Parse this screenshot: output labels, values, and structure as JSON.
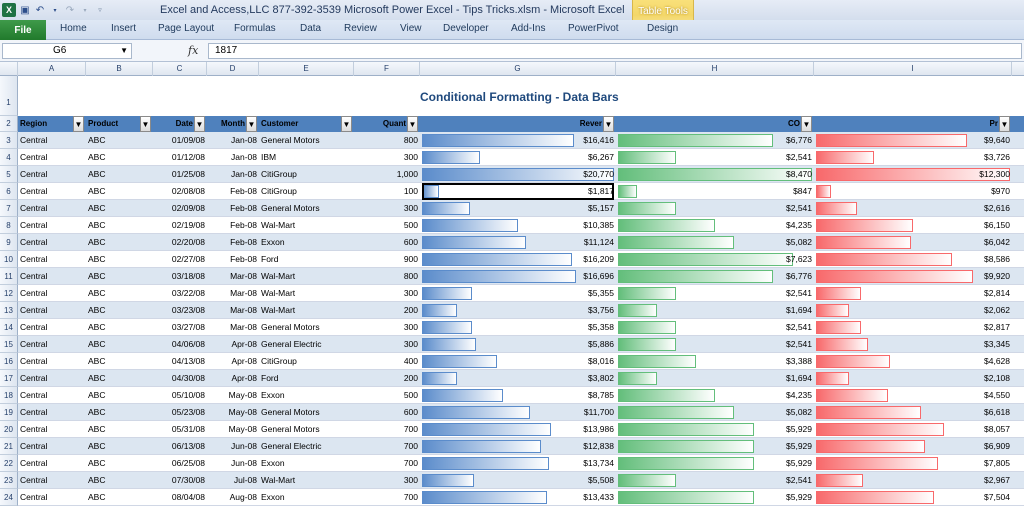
{
  "window_title": "Excel and Access,LLC 877-392-3539 Microsoft Power Excel - Tips  Tricks.xlsm  -  Microsoft Excel",
  "context_tab": "Table Tools",
  "ribbon_tabs": [
    "File",
    "Home",
    "Insert",
    "Page Layout",
    "Formulas",
    "Data",
    "Review",
    "View",
    "Developer",
    "Add-Ins",
    "PowerPivot",
    "Design"
  ],
  "name_box": "G6",
  "formula": "1817",
  "fx_label": "fx",
  "columns": [
    "A",
    "B",
    "C",
    "D",
    "E",
    "F",
    "G",
    "H",
    "I"
  ],
  "sheet_title": "Conditional Formatting - Data Bars",
  "headers": [
    "Region",
    "Product",
    "Date",
    "Month",
    "Customer",
    "Quantity",
    "Revenue",
    "COGS",
    "Profit"
  ],
  "header_shown": [
    "Region",
    "Product",
    "Date",
    "Month",
    "Customer",
    "Quant",
    "Rever",
    "CO",
    "Pr"
  ],
  "row_numbers": [
    1,
    2,
    3,
    4,
    5,
    6,
    7,
    8,
    9,
    10,
    11,
    12,
    13,
    14,
    15,
    16,
    17,
    18,
    19,
    20,
    21,
    22,
    23,
    24
  ],
  "colors": {
    "bar_blue": "#5b8ccb",
    "bar_green": "#63be7b",
    "bar_red": "#f8696b",
    "header_fill": "#4f81bd",
    "band_fill": "#dce6f1"
  },
  "rows": [
    [
      "Central",
      "ABC",
      "01/09/08",
      "Jan-08",
      "General Motors",
      "800",
      "$16,416",
      "$6,776",
      "$9,640"
    ],
    [
      "Central",
      "ABC",
      "01/12/08",
      "Jan-08",
      "IBM",
      "300",
      "$6,267",
      "$2,541",
      "$3,726"
    ],
    [
      "Central",
      "ABC",
      "01/25/08",
      "Jan-08",
      "CitiGroup",
      "1,000",
      "$20,770",
      "$8,470",
      "$12,300"
    ],
    [
      "Central",
      "ABC",
      "02/08/08",
      "Feb-08",
      "CitiGroup",
      "100",
      "$1,817",
      "$847",
      "$970"
    ],
    [
      "Central",
      "ABC",
      "02/09/08",
      "Feb-08",
      "General Motors",
      "300",
      "$5,157",
      "$2,541",
      "$2,616"
    ],
    [
      "Central",
      "ABC",
      "02/19/08",
      "Feb-08",
      "Wal-Mart",
      "500",
      "$10,385",
      "$4,235",
      "$6,150"
    ],
    [
      "Central",
      "ABC",
      "02/20/08",
      "Feb-08",
      "Exxon",
      "600",
      "$11,124",
      "$5,082",
      "$6,042"
    ],
    [
      "Central",
      "ABC",
      "02/27/08",
      "Feb-08",
      "Ford",
      "900",
      "$16,209",
      "$7,623",
      "$8,586"
    ],
    [
      "Central",
      "ABC",
      "03/18/08",
      "Mar-08",
      "Wal-Mart",
      "800",
      "$16,696",
      "$6,776",
      "$9,920"
    ],
    [
      "Central",
      "ABC",
      "03/22/08",
      "Mar-08",
      "Wal-Mart",
      "300",
      "$5,355",
      "$2,541",
      "$2,814"
    ],
    [
      "Central",
      "ABC",
      "03/23/08",
      "Mar-08",
      "Wal-Mart",
      "200",
      "$3,756",
      "$1,694",
      "$2,062"
    ],
    [
      "Central",
      "ABC",
      "03/27/08",
      "Mar-08",
      "General Motors",
      "300",
      "$5,358",
      "$2,541",
      "$2,817"
    ],
    [
      "Central",
      "ABC",
      "04/06/08",
      "Apr-08",
      "General Electric",
      "300",
      "$5,886",
      "$2,541",
      "$3,345"
    ],
    [
      "Central",
      "ABC",
      "04/13/08",
      "Apr-08",
      "CitiGroup",
      "400",
      "$8,016",
      "$3,388",
      "$4,628"
    ],
    [
      "Central",
      "ABC",
      "04/30/08",
      "Apr-08",
      "Ford",
      "200",
      "$3,802",
      "$1,694",
      "$2,108"
    ],
    [
      "Central",
      "ABC",
      "05/10/08",
      "May-08",
      "Exxon",
      "500",
      "$8,785",
      "$4,235",
      "$4,550"
    ],
    [
      "Central",
      "ABC",
      "05/23/08",
      "May-08",
      "General Motors",
      "600",
      "$11,700",
      "$5,082",
      "$6,618"
    ],
    [
      "Central",
      "ABC",
      "05/31/08",
      "May-08",
      "General Motors",
      "700",
      "$13,986",
      "$5,929",
      "$8,057"
    ],
    [
      "Central",
      "ABC",
      "06/13/08",
      "Jun-08",
      "General Electric",
      "700",
      "$12,838",
      "$5,929",
      "$6,909"
    ],
    [
      "Central",
      "ABC",
      "06/25/08",
      "Jun-08",
      "Exxon",
      "700",
      "$13,734",
      "$5,929",
      "$7,805"
    ],
    [
      "Central",
      "ABC",
      "07/30/08",
      "Jul-08",
      "Wal-Mart",
      "300",
      "$5,508",
      "$2,541",
      "$2,967"
    ],
    [
      "Central",
      "ABC",
      "08/04/08",
      "Aug-08",
      "Exxon",
      "700",
      "$13,433",
      "$5,929",
      "$7,504"
    ]
  ],
  "bar_fraction": {
    "revenue": [
      0.79,
      0.3,
      1.0,
      0.087,
      0.25,
      0.5,
      0.54,
      0.78,
      0.8,
      0.26,
      0.18,
      0.26,
      0.28,
      0.39,
      0.18,
      0.42,
      0.56,
      0.67,
      0.62,
      0.66,
      0.27,
      0.65
    ],
    "cogs": [
      0.8,
      0.3,
      1.0,
      0.1,
      0.3,
      0.5,
      0.6,
      0.9,
      0.8,
      0.3,
      0.2,
      0.3,
      0.3,
      0.4,
      0.2,
      0.5,
      0.6,
      0.7,
      0.7,
      0.7,
      0.3,
      0.7
    ],
    "profit": [
      0.78,
      0.3,
      1.0,
      0.079,
      0.21,
      0.5,
      0.49,
      0.7,
      0.81,
      0.23,
      0.17,
      0.23,
      0.27,
      0.38,
      0.17,
      0.37,
      0.54,
      0.66,
      0.56,
      0.63,
      0.24,
      0.61
    ]
  }
}
